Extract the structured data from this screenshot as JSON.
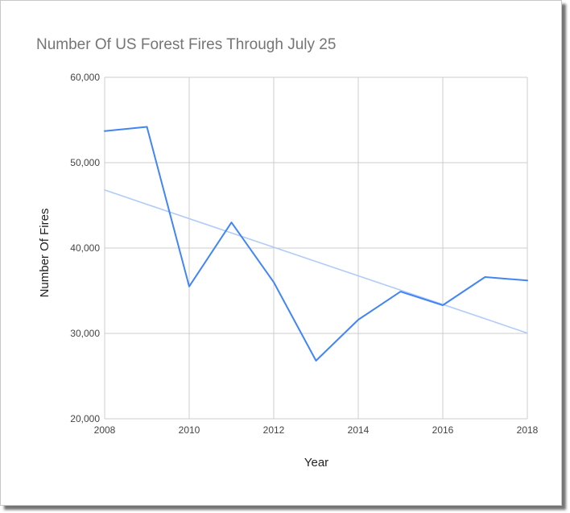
{
  "chart_data": {
    "type": "line",
    "title": "Number Of US Forest Fires Through July 25",
    "xlabel": "Year",
    "ylabel": "Number Of Fires",
    "xlim": [
      2008,
      2018
    ],
    "ylim": [
      20000,
      60000
    ],
    "x_ticks": [
      2008,
      2010,
      2012,
      2014,
      2016,
      2018
    ],
    "y_ticks": [
      20000,
      30000,
      40000,
      50000,
      60000
    ],
    "y_tick_labels": [
      "20,000",
      "30,000",
      "40,000",
      "50,000",
      "60,000"
    ],
    "grid": true,
    "legend": "none",
    "x": [
      2008,
      2009,
      2010,
      2011,
      2012,
      2013,
      2014,
      2015,
      2016,
      2017,
      2018
    ],
    "series": [
      {
        "values": [
          53700,
          54200,
          35500,
          43000,
          36000,
          26800,
          31600,
          34900,
          33300,
          36600,
          36200
        ],
        "color": "#4285f4"
      },
      {
        "type": "trendline",
        "values": [
          46800,
          45124,
          43448,
          41772,
          40096,
          38420,
          36744,
          35068,
          33392,
          31716,
          30040
        ],
        "color": "#aecbfa"
      }
    ]
  }
}
